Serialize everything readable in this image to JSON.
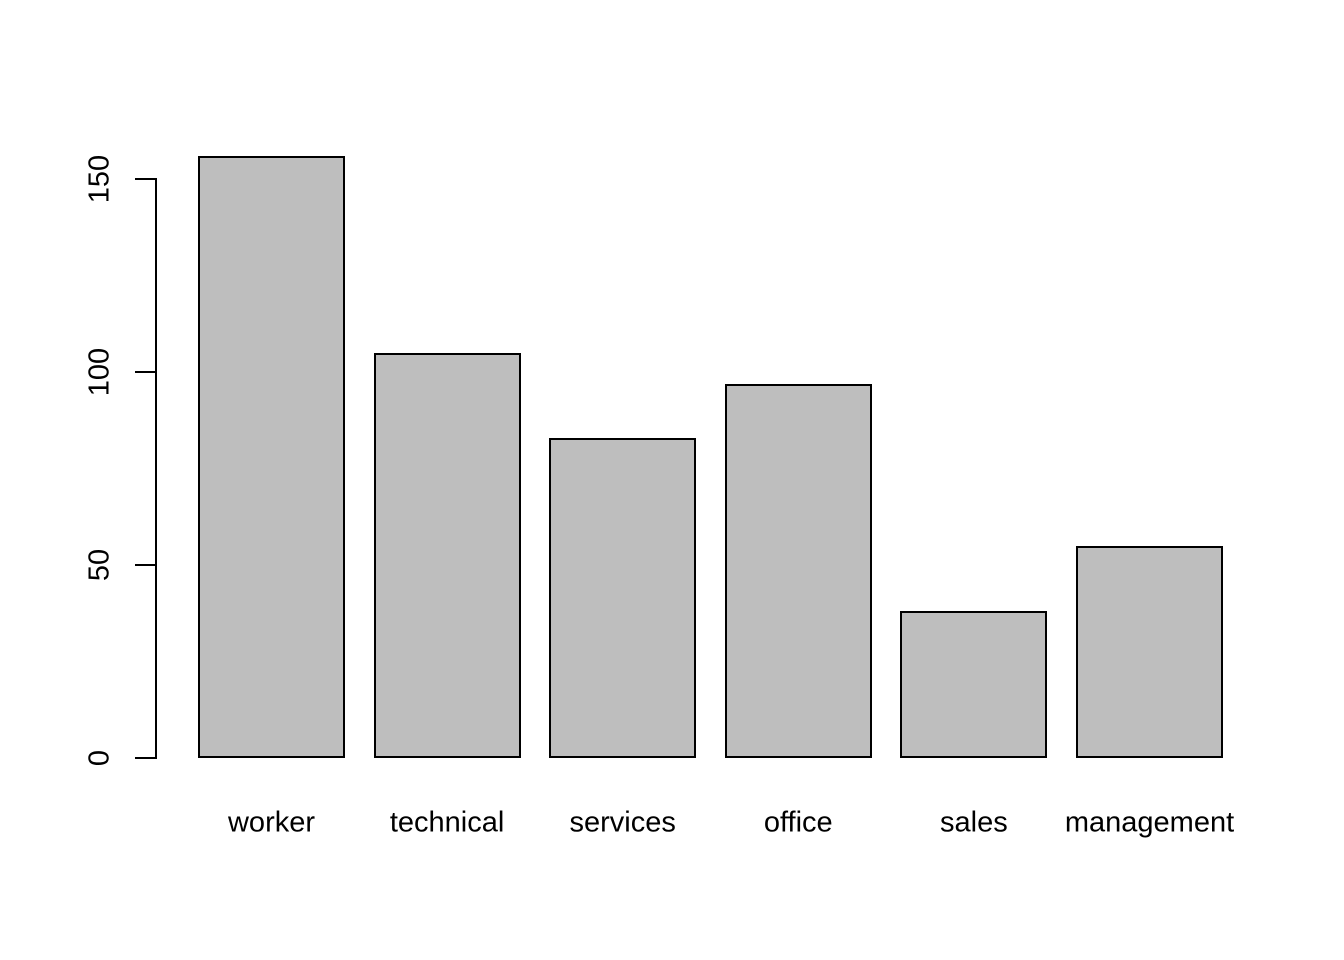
{
  "chart_data": {
    "type": "bar",
    "categories": [
      "worker",
      "technical",
      "services",
      "office",
      "sales",
      "management"
    ],
    "values": [
      156,
      105,
      83,
      97,
      38,
      55
    ],
    "title": "",
    "xlabel": "",
    "ylabel": "",
    "ylim": [
      0,
      150
    ],
    "yticks": [
      0,
      50,
      100,
      150
    ],
    "ytick_labels": [
      "0",
      "50",
      "100",
      "150"
    ],
    "legend_position": "none",
    "grid": false,
    "colors": {
      "bar_fill": "#BEBEBE",
      "bar_border": "#000000",
      "axis": "#000000",
      "text": "#000000",
      "background": "#FFFFFF"
    }
  }
}
